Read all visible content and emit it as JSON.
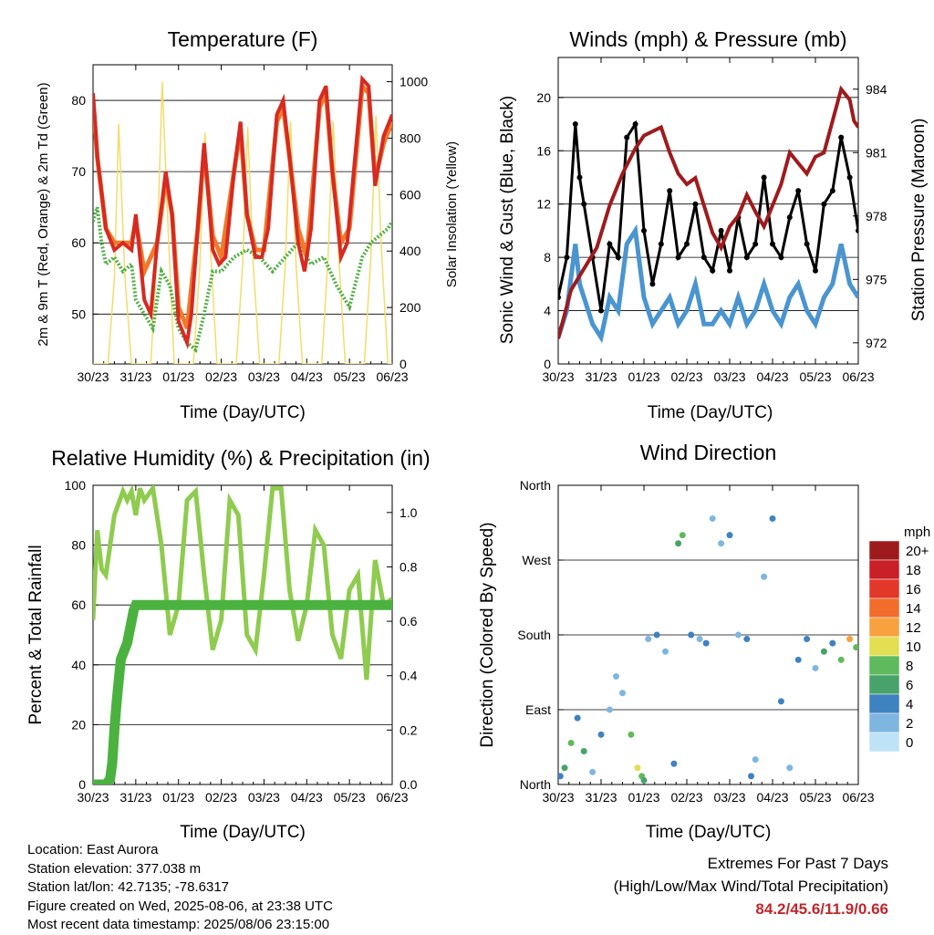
{
  "panels": {
    "temp": {
      "title": "Temperature (F)",
      "ylabel_left": "2m & 9m T (Red, Orange) & 2m Td (Green)",
      "ylabel_right": "Solar Insolation (Yellow)",
      "xlabel": "Time (Day/UTC)"
    },
    "wind": {
      "title": "Winds (mph) & Pressure (mb)",
      "ylabel_left": "Sonic Wind & Gust (Blue, Black)",
      "ylabel_right": "Station Pressure (Maroon)",
      "xlabel": "Time (Day/UTC)"
    },
    "rh": {
      "title": "Relative Humidity (%) & Precipitation (in)",
      "ylabel_left": "Percent & Total Rainfall",
      "xlabel": "Time (Day/UTC)"
    },
    "dir": {
      "title": "Wind Direction",
      "ylabel_left": "Direction (Colored By Speed)",
      "xlabel": "Time (Day/UTC)",
      "legend_title": "mph"
    }
  },
  "footer": {
    "location": "Location: East Aurora",
    "elevation": "Station elevation: 377.038 m",
    "latlon": "Station lat/lon: 42.7135; -78.6317",
    "created": "Figure created on Wed, 2025-08-06, at 23:38 UTC",
    "recent": "Most recent data timestamp: 2025/08/06 23:15:00",
    "extremes_title": "Extremes For Past 7 Days",
    "extremes_sub": "(High/Low/Max Wind/Total Precipitation)",
    "extremes_values": "84.2/45.6/11.9/0.66"
  },
  "colors": {
    "temp2m": "#d62a22",
    "temp9m": "#f07a2a",
    "dewpoint": "#4fae43",
    "solar": "#f3dc6a",
    "wind": "#4a95d0",
    "gust": "#000000",
    "pressure": "#9e1b1d",
    "rh": "#8fcb4f",
    "precip": "#4bb240",
    "extremes": "#c0272d"
  },
  "chart_data": [
    {
      "type": "line",
      "title": "Temperature (F)",
      "x_ticks": [
        "30/23",
        "31/23",
        "01/23",
        "02/23",
        "03/23",
        "04/23",
        "05/23",
        "06/23"
      ],
      "xlabel": "Time (Day/UTC)",
      "ylabel": "2m & 9m T (Red, Orange) & 2m Td (Green)",
      "ylim": [
        43,
        85
      ],
      "yticks": [
        50,
        60,
        70,
        80
      ],
      "y2label": "Solar Insolation (Yellow)",
      "y2lim": [
        0,
        1060
      ],
      "y2ticks": [
        0,
        200,
        400,
        600,
        800,
        1000
      ],
      "grid": true,
      "series": [
        {
          "name": "2m T (Red)",
          "x": [
            0,
            0.05,
            0.1,
            0.3,
            0.5,
            0.7,
            0.9,
            1.0,
            1.1,
            1.2,
            1.35,
            1.5,
            1.7,
            1.85,
            2.0,
            2.2,
            2.3,
            2.45,
            2.6,
            2.8,
            2.95,
            3.1,
            3.3,
            3.45,
            3.6,
            3.8,
            3.95,
            4.1,
            4.3,
            4.45,
            4.6,
            4.8,
            4.95,
            5.1,
            5.3,
            5.45,
            5.6,
            5.8,
            5.95,
            6.1,
            6.3,
            6.45,
            6.6,
            6.8,
            7.0
          ],
          "y": [
            81,
            77,
            72,
            62,
            59,
            60,
            59,
            64,
            58,
            52,
            50,
            60,
            70,
            64,
            49,
            46,
            50,
            62,
            74,
            59,
            57,
            58,
            70,
            77,
            64,
            58,
            58,
            62,
            78,
            80,
            72,
            60,
            56,
            62,
            80,
            82,
            70,
            58,
            60,
            70,
            83,
            82,
            68,
            75,
            78
          ]
        },
        {
          "name": "9m T (Orange)",
          "x": [
            0,
            0.1,
            0.3,
            0.5,
            0.7,
            0.9,
            1.0,
            1.2,
            1.5,
            1.7,
            1.85,
            2.0,
            2.2,
            2.45,
            2.6,
            2.8,
            3.0,
            3.3,
            3.45,
            3.6,
            3.8,
            4.0,
            4.3,
            4.45,
            4.6,
            4.8,
            5.0,
            5.3,
            5.45,
            5.6,
            5.8,
            6.0,
            6.3,
            6.45,
            6.6,
            6.8,
            7.0
          ],
          "y": [
            80,
            72,
            62,
            60,
            60,
            60,
            63,
            56,
            60,
            69,
            64,
            51,
            48,
            62,
            73,
            61,
            58,
            70,
            76,
            64,
            59,
            59,
            77,
            79,
            72,
            62,
            58,
            79,
            81,
            70,
            60,
            62,
            82,
            81,
            69,
            74,
            77
          ]
        },
        {
          "name": "2m Td (Green)",
          "x": [
            0,
            0.1,
            0.2,
            0.3,
            0.5,
            0.7,
            0.9,
            1.0,
            1.2,
            1.4,
            1.6,
            1.8,
            2.0,
            2.2,
            2.4,
            2.6,
            2.8,
            3.0,
            3.3,
            3.6,
            3.9,
            4.2,
            4.5,
            4.8,
            5.1,
            5.4,
            5.7,
            6.0,
            6.3,
            6.5,
            6.7,
            6.9,
            7.0
          ],
          "y": [
            63,
            65,
            60,
            57,
            58,
            56,
            57,
            52,
            50,
            48,
            56,
            54,
            48,
            46,
            45,
            50,
            56,
            56,
            58,
            59,
            58,
            56,
            58,
            60,
            57,
            58,
            54,
            51,
            58,
            60,
            61,
            62,
            63
          ]
        },
        {
          "name": "Solar Insolation (Yellow)",
          "axis": "right",
          "x": [
            0.0,
            0.35,
            0.5,
            0.6,
            0.75,
            0.9,
            1.35,
            1.5,
            1.62,
            1.75,
            1.9,
            2.35,
            2.5,
            2.62,
            2.75,
            2.9,
            3.35,
            3.5,
            3.62,
            3.75,
            3.9,
            4.35,
            4.5,
            4.62,
            4.75,
            4.9,
            5.35,
            5.5,
            5.62,
            5.75,
            5.9,
            6.35,
            6.5,
            6.62,
            6.75,
            6.9,
            7.0
          ],
          "y": [
            0,
            0,
            300,
            850,
            300,
            0,
            0,
            400,
            1000,
            500,
            0,
            0,
            350,
            820,
            400,
            0,
            0,
            350,
            840,
            350,
            0,
            0,
            360,
            860,
            350,
            0,
            0,
            380,
            860,
            380,
            0,
            0,
            380,
            880,
            400,
            0,
            0
          ]
        }
      ]
    },
    {
      "type": "line",
      "title": "Winds (mph) & Pressure (mb)",
      "x_ticks": [
        "30/23",
        "31/23",
        "01/23",
        "02/23",
        "03/23",
        "04/23",
        "05/23",
        "06/23"
      ],
      "xlabel": "Time (Day/UTC)",
      "ylabel": "Sonic Wind & Gust (Blue, Black)",
      "ylim": [
        0,
        23
      ],
      "yticks": [
        0,
        4,
        8,
        12,
        16,
        20
      ],
      "y2label": "Station Pressure (Maroon)",
      "y2lim": [
        971,
        985.5
      ],
      "y2ticks": [
        972,
        975,
        978,
        981,
        984
      ],
      "grid": true,
      "series": [
        {
          "name": "Sonic Wind (Blue)",
          "x": [
            0,
            0.2,
            0.4,
            0.5,
            0.6,
            0.8,
            1.0,
            1.2,
            1.4,
            1.6,
            1.8,
            2.0,
            2.2,
            2.4,
            2.6,
            2.8,
            3.0,
            3.2,
            3.4,
            3.6,
            3.8,
            4.0,
            4.2,
            4.4,
            4.6,
            4.8,
            5.0,
            5.2,
            5.4,
            5.6,
            5.8,
            6.0,
            6.2,
            6.4,
            6.6,
            6.8,
            7.0
          ],
          "y": [
            2,
            4,
            9,
            6,
            5,
            3,
            2,
            5,
            4,
            9,
            10,
            5,
            3,
            4,
            5,
            3,
            4,
            6,
            3,
            3,
            4,
            3,
            5,
            3,
            4,
            6,
            4,
            3,
            5,
            6,
            4,
            3,
            5,
            6,
            9,
            6,
            5
          ]
        },
        {
          "name": "Sonic Gust (Black)",
          "x": [
            0,
            0.2,
            0.4,
            0.5,
            0.6,
            0.8,
            1.0,
            1.2,
            1.4,
            1.6,
            1.8,
            2.0,
            2.2,
            2.4,
            2.6,
            2.8,
            3.0,
            3.2,
            3.4,
            3.6,
            3.8,
            4.0,
            4.2,
            4.4,
            4.6,
            4.8,
            5.0,
            5.2,
            5.4,
            5.6,
            5.8,
            6.0,
            6.2,
            6.4,
            6.6,
            6.8,
            7.0
          ],
          "y": [
            5,
            8,
            18,
            14,
            12,
            8,
            4,
            9,
            8,
            17,
            18,
            10,
            6,
            9,
            13,
            8,
            9,
            12,
            8,
            7,
            10,
            7,
            11,
            8,
            9,
            14,
            9,
            8,
            11,
            13,
            9,
            7,
            12,
            13,
            17,
            14,
            10
          ]
        },
        {
          "name": "Station Pressure (Maroon)",
          "axis": "right",
          "x": [
            0,
            0.3,
            0.6,
            0.9,
            1.2,
            1.5,
            1.8,
            2.0,
            2.2,
            2.4,
            2.6,
            2.8,
            3.0,
            3.2,
            3.4,
            3.6,
            3.8,
            4.0,
            4.2,
            4.4,
            4.6,
            4.8,
            5.0,
            5.2,
            5.4,
            5.6,
            5.8,
            6.0,
            6.2,
            6.4,
            6.6,
            6.8,
            6.9,
            7.0
          ],
          "y": [
            972.2,
            974.5,
            975.5,
            976.5,
            978.5,
            980,
            981.2,
            981.8,
            982,
            982.2,
            981,
            980,
            979.5,
            979.8,
            978.5,
            977.2,
            976.5,
            977.5,
            978,
            979,
            978.2,
            977.5,
            978.5,
            979.5,
            981,
            980.5,
            980,
            980.8,
            981,
            982.5,
            984,
            983.5,
            982.5,
            982.2
          ]
        }
      ]
    },
    {
      "type": "line",
      "title": "Relative Humidity (%) & Precipitation (in)",
      "x_ticks": [
        "30/23",
        "31/23",
        "01/23",
        "02/23",
        "03/23",
        "04/23",
        "05/23",
        "06/23"
      ],
      "xlabel": "Time (Day/UTC)",
      "ylabel": "Percent & Total Rainfall",
      "ylim": [
        0,
        100
      ],
      "yticks": [
        0,
        20,
        40,
        60,
        80,
        100
      ],
      "y2lim": [
        0,
        1.1
      ],
      "y2ticks": [
        0.0,
        0.2,
        0.4,
        0.6,
        0.8,
        1.0
      ],
      "grid": true,
      "series": [
        {
          "name": "Relative Humidity",
          "x": [
            0,
            0.05,
            0.1,
            0.2,
            0.3,
            0.5,
            0.7,
            0.8,
            0.9,
            1.0,
            1.1,
            1.2,
            1.4,
            1.6,
            1.8,
            2.0,
            2.2,
            2.4,
            2.6,
            2.8,
            3.0,
            3.2,
            3.4,
            3.6,
            3.8,
            4.0,
            4.2,
            4.4,
            4.6,
            4.8,
            5.0,
            5.2,
            5.4,
            5.6,
            5.8,
            6.0,
            6.2,
            6.4,
            6.6,
            6.8,
            7.0
          ],
          "y": [
            55,
            70,
            85,
            72,
            70,
            90,
            98,
            95,
            98,
            90,
            99,
            95,
            99,
            80,
            50,
            60,
            95,
            98,
            70,
            45,
            55,
            95,
            90,
            50,
            45,
            70,
            99,
            99,
            65,
            48,
            60,
            85,
            80,
            50,
            42,
            65,
            70,
            35,
            75,
            60,
            62
          ]
        },
        {
          "name": "Total Precipitation",
          "axis": "right",
          "x": [
            0,
            0.3,
            0.4,
            0.45,
            0.5,
            0.55,
            0.6,
            0.65,
            0.7,
            0.75,
            0.8,
            0.85,
            0.9,
            0.95,
            1.0,
            7.0
          ],
          "y": [
            0,
            0,
            0.02,
            0.08,
            0.2,
            0.3,
            0.38,
            0.46,
            0.48,
            0.5,
            0.52,
            0.56,
            0.6,
            0.64,
            0.66,
            0.66
          ]
        }
      ]
    },
    {
      "type": "scatter",
      "title": "Wind Direction",
      "x_ticks": [
        "30/23",
        "31/23",
        "01/23",
        "02/23",
        "03/23",
        "04/23",
        "05/23",
        "06/23"
      ],
      "xlabel": "Time (Day/UTC)",
      "ylabel": "Direction (Colored By Speed)",
      "ylim": [
        0,
        360
      ],
      "yticks": [
        "North",
        "East",
        "South",
        "West",
        "North"
      ],
      "grid": true,
      "legend": {
        "title": "mph",
        "placement": "right",
        "labels": [
          "20+",
          "18",
          "16",
          "14",
          "12",
          "10",
          "8",
          "6",
          "4",
          "2",
          "0"
        ],
        "colors": [
          "#9e1b1d",
          "#c91f26",
          "#e2382a",
          "#f26c2b",
          "#f7a23f",
          "#e3df52",
          "#5fba5c",
          "#47a36a",
          "#3f82c0",
          "#7fb6e0",
          "#bfe3f6"
        ]
      },
      "series": [
        {
          "name": "Direction",
          "x": [
            0.05,
            0.15,
            0.3,
            0.45,
            0.6,
            0.8,
            1.0,
            1.2,
            1.35,
            1.5,
            1.7,
            1.85,
            1.95,
            2.0,
            2.1,
            2.3,
            2.5,
            2.7,
            2.8,
            2.9,
            3.1,
            3.3,
            3.45,
            3.6,
            3.8,
            4.0,
            4.2,
            4.4,
            4.5,
            4.6,
            4.8,
            5.0,
            5.2,
            5.4,
            5.6,
            5.8,
            6.0,
            6.2,
            6.4,
            6.6,
            6.8,
            6.95
          ],
          "y": [
            10,
            20,
            50,
            80,
            40,
            15,
            60,
            90,
            130,
            110,
            60,
            20,
            10,
            5,
            175,
            180,
            160,
            25,
            290,
            300,
            180,
            175,
            170,
            320,
            290,
            300,
            180,
            175,
            10,
            30,
            250,
            320,
            100,
            20,
            150,
            175,
            140,
            160,
            170,
            150,
            175,
            165
          ],
          "c": [
            4,
            6,
            8,
            4,
            6,
            3,
            4,
            3,
            2,
            2,
            8,
            10,
            8,
            6,
            3,
            4,
            3,
            5,
            6,
            8,
            4,
            3,
            4,
            3,
            2,
            5,
            3,
            4,
            4,
            2,
            3,
            4,
            4,
            3,
            4,
            5,
            3,
            6,
            4,
            8,
            12,
            8
          ]
        }
      ]
    }
  ]
}
